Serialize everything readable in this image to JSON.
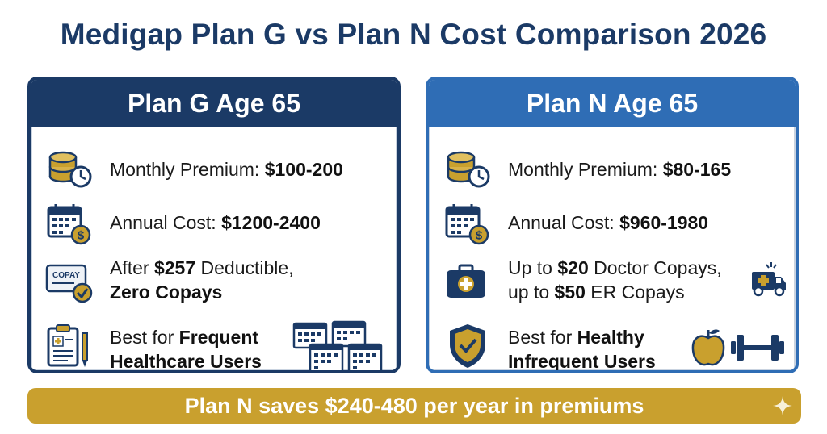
{
  "title": "Medigap Plan G vs Plan N Cost Comparison 2026",
  "plan_g": {
    "header": "Plan G Age 65",
    "monthly_label": "Monthly Premium: ",
    "monthly_value": "$100-200",
    "annual_label": "Annual Cost: ",
    "annual_value": "$1200-2400",
    "deductible_line1_pre": "After ",
    "deductible_line1_bold": "$257",
    "deductible_line1_post": " Deductible,",
    "deductible_line2": "Zero Copays",
    "copay_card_text": "COPAY",
    "best_line1_pre": "Best for ",
    "best_line1_bold": "Frequent",
    "best_line2": "Healthcare Users"
  },
  "plan_n": {
    "header": "Plan N Age 65",
    "monthly_label": "Monthly Premium: ",
    "monthly_value": "$80-165",
    "annual_label": "Annual Cost: ",
    "annual_value": "$960-1980",
    "copay_line1_pre": "Up to ",
    "copay_line1_bold": "$20",
    "copay_line1_post": " Doctor Copays,",
    "copay_line2_pre": "up to ",
    "copay_line2_bold": "$50",
    "copay_line2_post": " ER Copays",
    "best_line1_pre": "Best for ",
    "best_line1_bold": "Healthy",
    "best_line2": "Infrequent Users"
  },
  "banner": "Plan N saves $240-480 per year in premiums",
  "icons": {
    "coins_clock": "coins-clock-icon",
    "calendar_dollar": "calendar-dollar-icon",
    "copay_card": "copay-card-icon",
    "clipboard": "medical-clipboard-icon",
    "calendars": "calendars-icon",
    "first_aid": "first-aid-kit-icon",
    "ambulance": "ambulance-icon",
    "shield": "shield-check-icon",
    "apple": "apple-icon",
    "dumbbell": "dumbbell-icon",
    "sparkle": "sparkle-icon"
  },
  "colors": {
    "navy": "#1b3a66",
    "blue": "#2f6db5",
    "gold": "#c9a02e",
    "text": "#1a1a1a"
  }
}
